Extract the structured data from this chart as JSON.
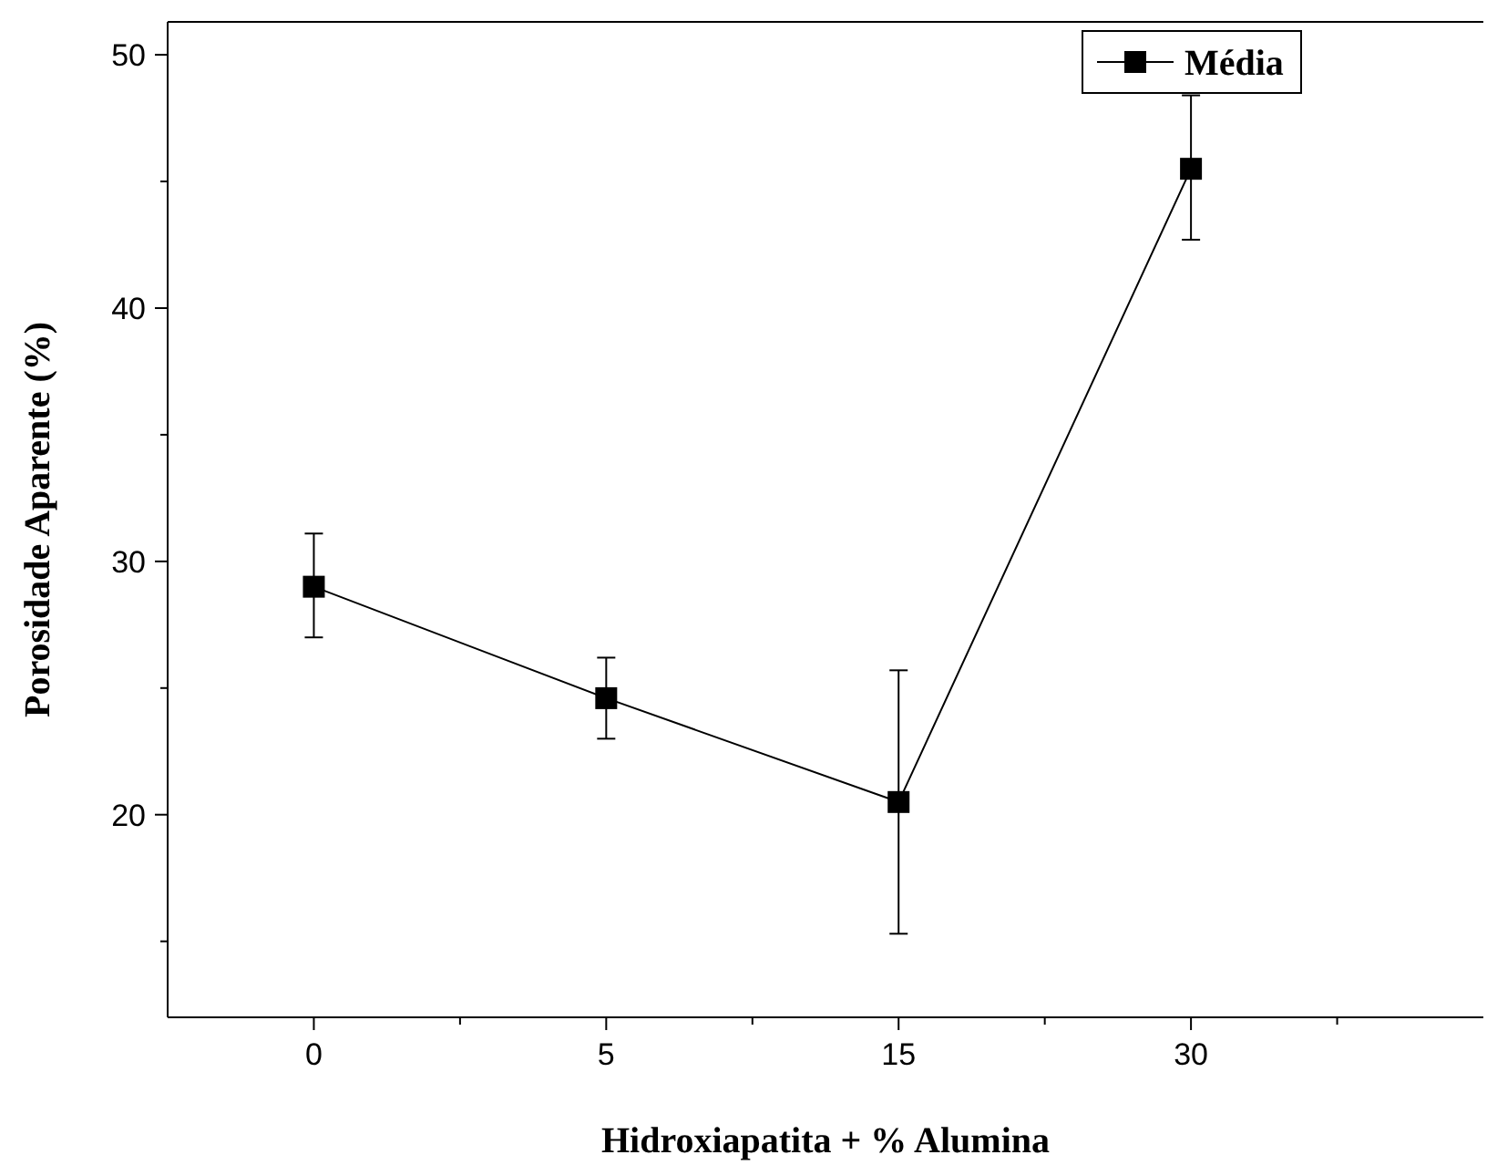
{
  "chart_data": {
    "type": "line",
    "xlabel": "Hidroxiapatita + % Alumina",
    "ylabel": "Porosidade Aparente (%)",
    "categories": [
      "0",
      "5",
      "15",
      "30"
    ],
    "series": [
      {
        "name": "Média",
        "color": "#000000",
        "values": [
          29.0,
          24.6,
          20.5,
          45.5
        ],
        "errors": [
          [
            27.0,
            31.1
          ],
          [
            23.0,
            26.2
          ],
          [
            15.3,
            25.7
          ],
          [
            42.7,
            48.4
          ]
        ]
      }
    ],
    "ylim": [
      12,
      51.3
    ],
    "yticks": [
      {
        "value": 15,
        "label": null
      },
      20,
      {
        "value": 25,
        "label": null
      },
      30,
      {
        "value": 35,
        "label": null
      },
      40,
      {
        "value": 45,
        "label": null
      },
      50
    ],
    "marker": "square",
    "line_style": "solid",
    "legend": "top right",
    "grid": false
  }
}
